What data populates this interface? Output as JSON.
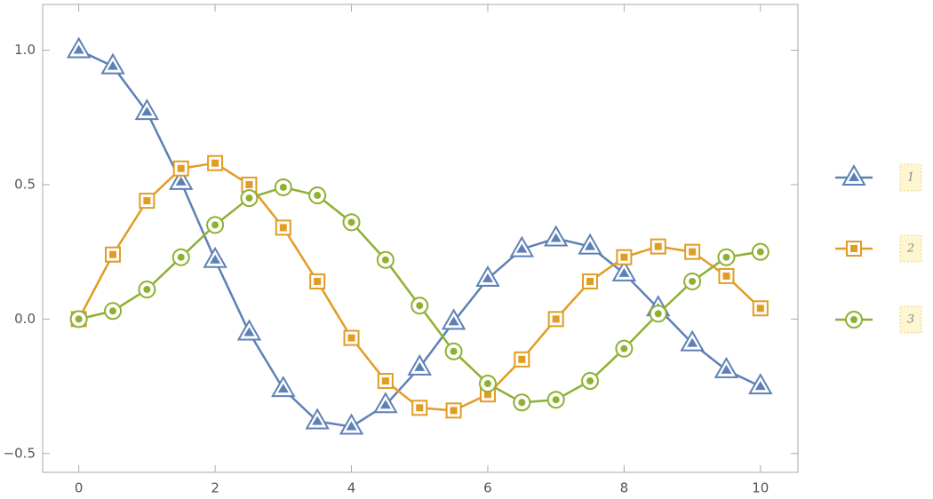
{
  "chart_data": {
    "type": "line",
    "x": [
      0,
      0.5,
      1,
      1.5,
      2,
      2.5,
      3,
      3.5,
      4,
      4.5,
      5,
      5.5,
      6,
      6.5,
      7,
      7.5,
      8,
      8.5,
      9,
      9.5,
      10
    ],
    "series": [
      {
        "name": "1",
        "color": "#5e81b5",
        "marker": "triangle",
        "values": [
          1.0,
          0.94,
          0.77,
          0.51,
          0.22,
          -0.05,
          -0.26,
          -0.38,
          -0.4,
          -0.32,
          -0.18,
          -0.01,
          0.15,
          0.26,
          0.3,
          0.27,
          0.17,
          0.04,
          -0.09,
          -0.19,
          -0.25
        ]
      },
      {
        "name": "2",
        "color": "#e19c24",
        "marker": "square",
        "values": [
          0.0,
          0.24,
          0.44,
          0.56,
          0.58,
          0.5,
          0.34,
          0.14,
          -0.07,
          -0.23,
          -0.33,
          -0.34,
          -0.28,
          -0.15,
          0.0,
          0.14,
          0.23,
          0.27,
          0.25,
          0.16,
          0.04
        ]
      },
      {
        "name": "3",
        "color": "#8fb032",
        "marker": "circle",
        "values": [
          0.0,
          0.03,
          0.11,
          0.23,
          0.35,
          0.45,
          0.49,
          0.46,
          0.36,
          0.22,
          0.05,
          -0.12,
          -0.24,
          -0.31,
          -0.3,
          -0.23,
          -0.11,
          0.02,
          0.14,
          0.23,
          0.25
        ]
      }
    ],
    "xlim": [
      -0.53,
      10.55
    ],
    "ylim": [
      -0.57,
      1.17
    ],
    "xticks": [
      0,
      2,
      4,
      6,
      8,
      10
    ],
    "yticks": [
      {
        "value": -0.5,
        "label": "−0.5"
      },
      {
        "value": 0,
        "label": "0.0"
      },
      0.5,
      {
        "value": 1,
        "label": "1.0"
      }
    ]
  }
}
